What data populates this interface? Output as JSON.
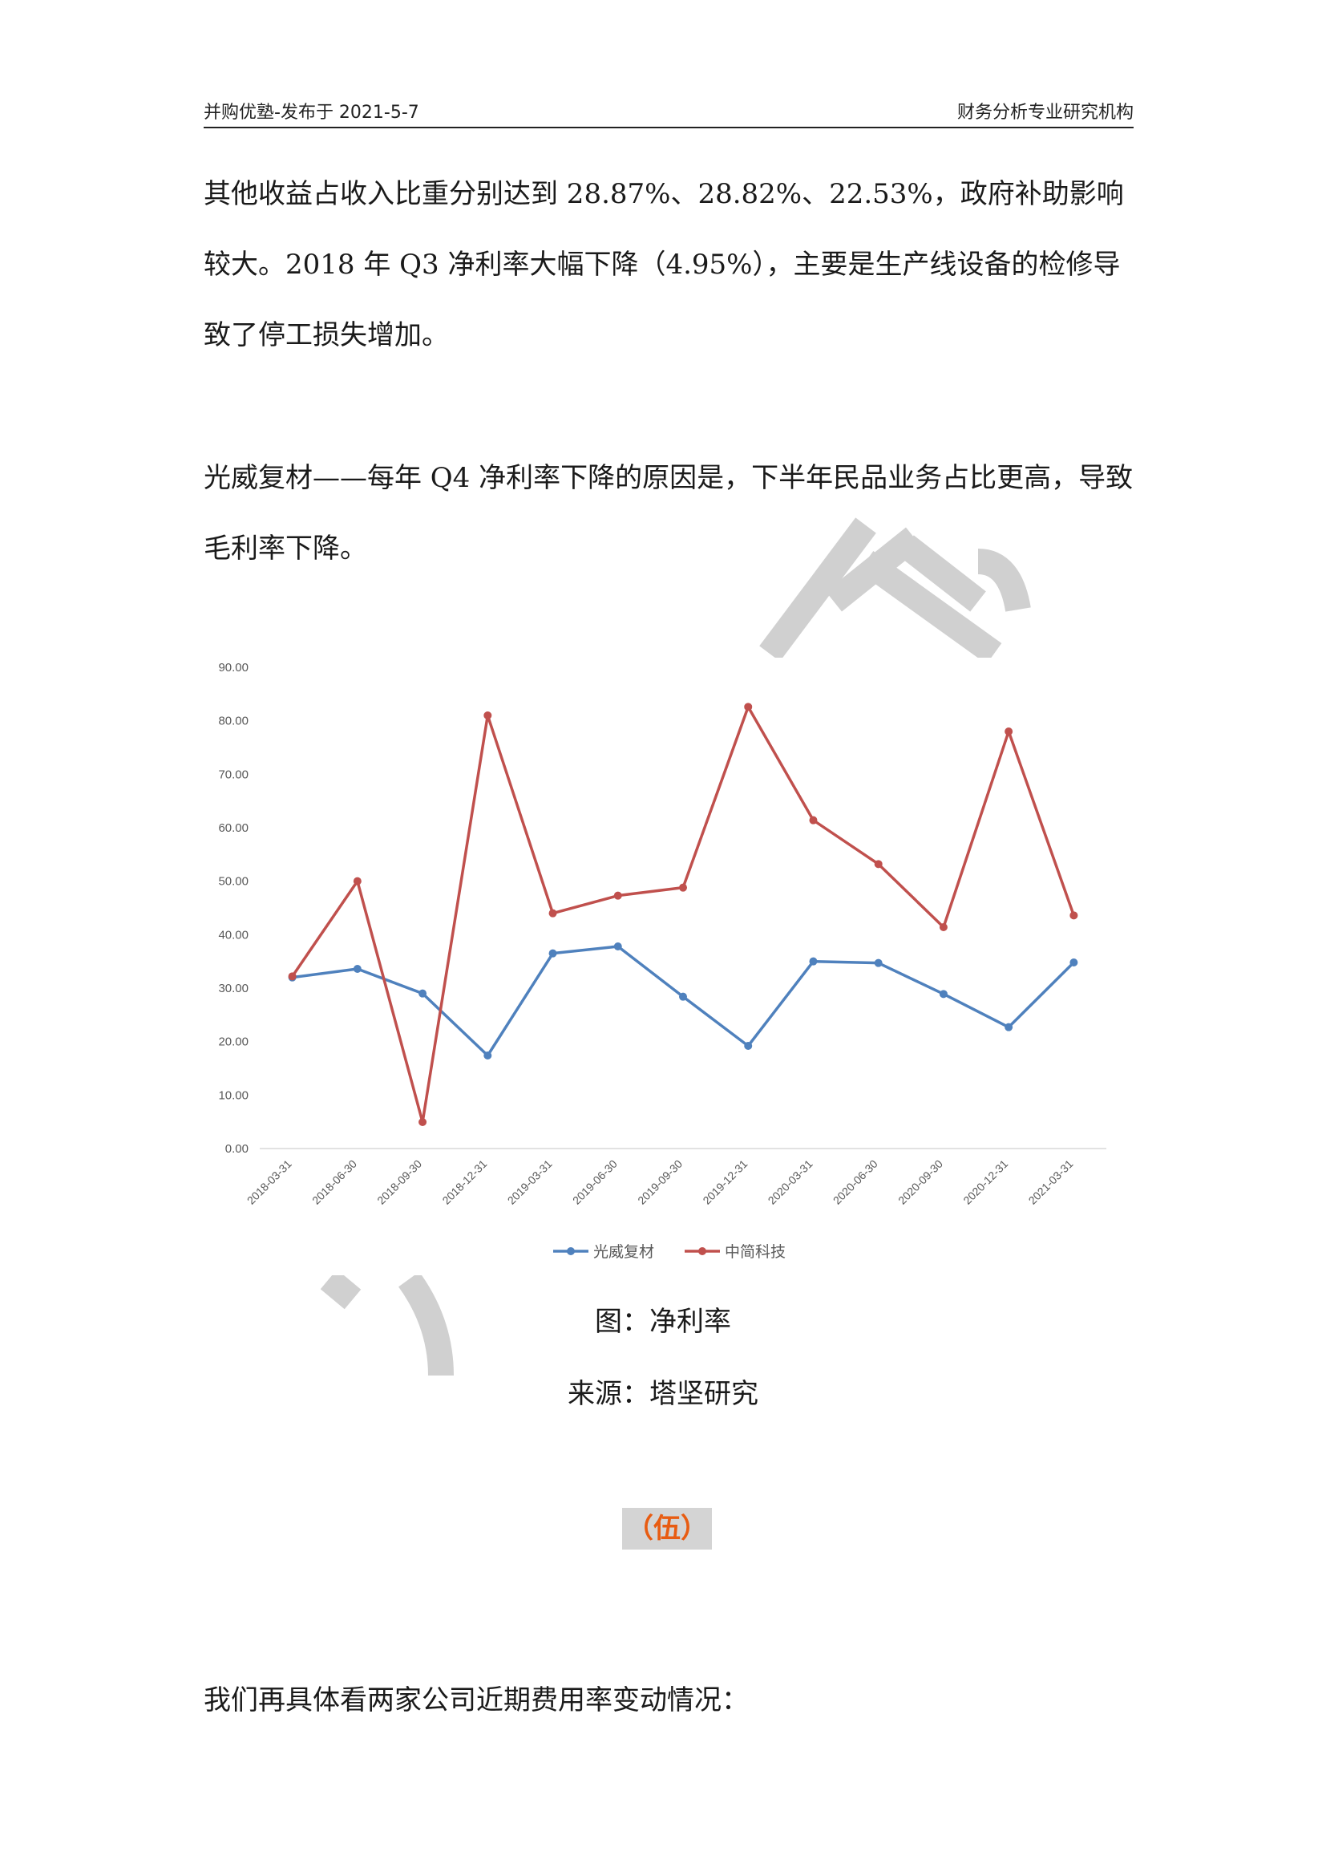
{
  "header": {
    "left_text": "并购优塾-发布于 2021-5-7",
    "right_text": "财务分析专业研究机构"
  },
  "paragraphs": {
    "p1": "其他收益占收入比重分别达到 28.87%、28.82%、22.53%，政府补助影响较大。2018 年 Q3 净利率大幅下降（4.95%），主要是生产线设备的检修导致了停工损失增加。",
    "p2": "光威复材——每年 Q4 净利率下降的原因是，下半年民品业务占比更高，导致毛利率下降。",
    "p3": "我们再具体看两家公司近期费用率变动情况："
  },
  "figure": {
    "caption": "图：净利率",
    "source": "来源：塔坚研究"
  },
  "section_marker": "（伍）",
  "colors": {
    "series_blue": "#4f81bd",
    "series_red": "#c0504d",
    "section_marker_text": "#e85c12",
    "section_marker_bg": "#d4d4d4"
  },
  "chart_data": {
    "type": "line",
    "categories": [
      "2018-03-31",
      "2018-06-30",
      "2018-09-30",
      "2018-12-31",
      "2019-03-31",
      "2019-06-30",
      "2019-09-30",
      "2019-12-31",
      "2020-03-31",
      "2020-06-30",
      "2020-09-30",
      "2020-12-31",
      "2021-03-31"
    ],
    "series": [
      {
        "name": "光威复材",
        "color": "#4f81bd",
        "values": [
          32.0,
          33.6,
          29.0,
          17.4,
          36.5,
          37.8,
          28.4,
          19.2,
          35.0,
          34.7,
          28.9,
          22.7,
          34.8
        ]
      },
      {
        "name": "中简科技",
        "color": "#c0504d",
        "values": [
          32.2,
          50.0,
          4.95,
          81.0,
          44.0,
          47.3,
          48.8,
          82.6,
          61.4,
          53.2,
          41.4,
          78.0,
          43.6
        ]
      }
    ],
    "y_ticks": [
      "0.00",
      "10.00",
      "20.00",
      "30.00",
      "40.00",
      "50.00",
      "60.00",
      "70.00",
      "80.00",
      "90.00"
    ],
    "ylim": [
      0,
      90
    ],
    "grid": false,
    "legend_position": "bottom"
  }
}
